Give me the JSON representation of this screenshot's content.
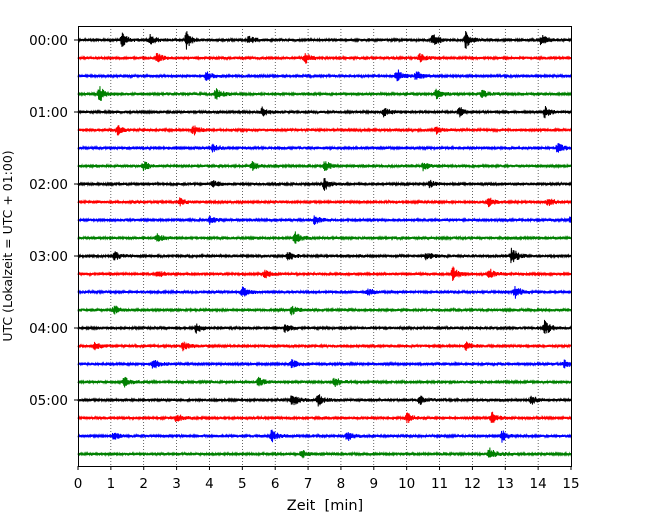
{
  "chart_data": {
    "type": "line",
    "title": "",
    "xlabel": "Zeit  [min]",
    "ylabel": "UTC (Lokalzeit = UTC + 01:00)",
    "xlim": [
      0,
      15
    ],
    "x_ticks": [
      "0",
      "1",
      "2",
      "3",
      "4",
      "5",
      "6",
      "7",
      "8",
      "9",
      "10",
      "11",
      "12",
      "13",
      "14",
      "15"
    ],
    "y_tick_labels": [
      "00:00",
      "01:00",
      "02:00",
      "03:00",
      "04:00",
      "05:00"
    ],
    "minutes_per_trace": 15,
    "grid": "vertical dotted lines at each minute",
    "trace_colors": [
      "#000000",
      "#ff0000",
      "#0000ff",
      "#008000"
    ],
    "trace_count": 24,
    "traces": [
      {
        "start": "00:00",
        "events": [
          [
            1.35,
            0.5
          ],
          [
            2.2,
            0.4
          ],
          [
            3.3,
            0.6
          ],
          [
            5.2,
            0.3
          ],
          [
            10.8,
            0.5
          ],
          [
            11.8,
            0.6
          ],
          [
            14.1,
            0.4
          ]
        ]
      },
      {
        "start": "00:15",
        "events": [
          [
            2.4,
            0.35
          ],
          [
            6.9,
            0.4
          ],
          [
            10.4,
            0.3
          ]
        ]
      },
      {
        "start": "00:30",
        "events": [
          [
            3.9,
            0.3
          ],
          [
            9.7,
            0.5
          ],
          [
            10.3,
            0.35
          ]
        ]
      },
      {
        "start": "00:45",
        "events": [
          [
            0.65,
            0.6
          ],
          [
            4.2,
            0.4
          ],
          [
            10.9,
            0.4
          ],
          [
            12.3,
            0.3
          ]
        ]
      },
      {
        "start": "01:00",
        "events": [
          [
            5.6,
            0.3
          ],
          [
            9.3,
            0.3
          ],
          [
            11.6,
            0.35
          ],
          [
            14.2,
            0.4
          ]
        ]
      },
      {
        "start": "01:15",
        "events": [
          [
            1.2,
            0.35
          ],
          [
            3.5,
            0.4
          ],
          [
            10.9,
            0.25
          ]
        ]
      },
      {
        "start": "01:30",
        "events": [
          [
            4.1,
            0.3
          ],
          [
            14.6,
            0.35
          ]
        ]
      },
      {
        "start": "01:45",
        "events": [
          [
            2.0,
            0.3
          ],
          [
            5.3,
            0.3
          ],
          [
            7.5,
            0.35
          ],
          [
            10.5,
            0.3
          ]
        ]
      },
      {
        "start": "02:00",
        "events": [
          [
            4.1,
            0.3
          ],
          [
            7.5,
            0.45
          ],
          [
            10.7,
            0.25
          ]
        ]
      },
      {
        "start": "02:15",
        "events": [
          [
            3.1,
            0.3
          ],
          [
            12.5,
            0.3
          ],
          [
            14.3,
            0.3
          ]
        ]
      },
      {
        "start": "02:30",
        "events": [
          [
            4.0,
            0.3
          ],
          [
            7.2,
            0.3
          ],
          [
            15.0,
            0.3
          ]
        ]
      },
      {
        "start": "02:45",
        "events": [
          [
            2.4,
            0.3
          ],
          [
            6.6,
            0.45
          ]
        ]
      },
      {
        "start": "03:00",
        "events": [
          [
            1.1,
            0.3
          ],
          [
            6.4,
            0.3
          ],
          [
            10.6,
            0.25
          ],
          [
            13.2,
            0.65
          ]
        ]
      },
      {
        "start": "03:15",
        "events": [
          [
            2.4,
            0.3
          ],
          [
            5.7,
            0.3
          ],
          [
            11.4,
            0.5
          ],
          [
            12.5,
            0.4
          ]
        ]
      },
      {
        "start": "03:30",
        "events": [
          [
            5.0,
            0.4
          ],
          [
            8.8,
            0.3
          ],
          [
            13.3,
            0.5
          ]
        ]
      },
      {
        "start": "03:45",
        "events": [
          [
            1.1,
            0.3
          ],
          [
            6.5,
            0.35
          ]
        ]
      },
      {
        "start": "04:00",
        "events": [
          [
            3.6,
            0.35
          ],
          [
            6.3,
            0.3
          ],
          [
            14.2,
            0.55
          ]
        ]
      },
      {
        "start": "04:15",
        "events": [
          [
            0.5,
            0.35
          ],
          [
            3.2,
            0.3
          ],
          [
            11.8,
            0.3
          ]
        ]
      },
      {
        "start": "04:30",
        "events": [
          [
            2.3,
            0.4
          ],
          [
            6.5,
            0.3
          ],
          [
            14.8,
            0.3
          ]
        ]
      },
      {
        "start": "04:45",
        "events": [
          [
            1.4,
            0.35
          ],
          [
            5.5,
            0.3
          ],
          [
            7.8,
            0.35
          ]
        ]
      },
      {
        "start": "05:00",
        "events": [
          [
            6.5,
            0.55
          ],
          [
            7.3,
            0.45
          ],
          [
            10.4,
            0.35
          ],
          [
            13.8,
            0.3
          ]
        ]
      },
      {
        "start": "05:15",
        "events": [
          [
            3.0,
            0.3
          ],
          [
            10.0,
            0.4
          ],
          [
            12.6,
            0.4
          ]
        ]
      },
      {
        "start": "05:30",
        "events": [
          [
            1.1,
            0.3
          ],
          [
            5.9,
            0.45
          ],
          [
            8.2,
            0.35
          ],
          [
            12.9,
            0.4
          ]
        ]
      },
      {
        "start": "05:45",
        "events": [
          [
            6.8,
            0.3
          ],
          [
            12.5,
            0.5
          ]
        ]
      }
    ]
  }
}
